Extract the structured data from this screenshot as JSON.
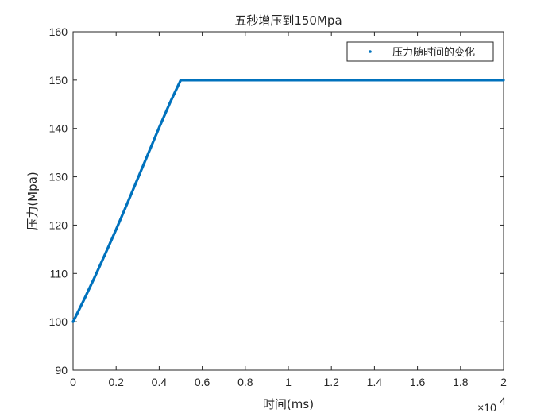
{
  "chart_data": {
    "type": "scatter",
    "title": "五秒增压到150Mpa",
    "xlabel": "时间(ms)",
    "ylabel": "压力(Mpa)",
    "xlim": [
      0,
      20000
    ],
    "ylim": [
      90,
      160
    ],
    "x_ticks": [
      0,
      2000,
      4000,
      6000,
      8000,
      10000,
      12000,
      14000,
      16000,
      18000,
      20000
    ],
    "x_tick_labels": [
      "0",
      "0.2",
      "0.4",
      "0.6",
      "0.8",
      "1",
      "1.2",
      "1.4",
      "1.6",
      "1.8",
      "2"
    ],
    "x_exponent_label": "×10",
    "x_exponent_power": "4",
    "y_ticks": [
      90,
      100,
      110,
      120,
      130,
      140,
      150,
      160
    ],
    "y_tick_labels": [
      "90",
      "100",
      "110",
      "120",
      "130",
      "140",
      "150",
      "160"
    ],
    "grid": false,
    "legend_position": "top-right",
    "colors": {
      "series": "#0072BD",
      "axis": "#262626"
    },
    "series": [
      {
        "name": "压力随时间的变化",
        "x": [
          0,
          500,
          1000,
          1500,
          2000,
          2500,
          3000,
          3500,
          4000,
          4500,
          5000,
          5500,
          6000,
          8000,
          10000,
          12000,
          14000,
          16000,
          18000,
          20000
        ],
        "y": [
          100,
          104.5,
          109.2,
          114.1,
          119.1,
          124.3,
          129.6,
          134.9,
          140.2,
          145.3,
          150,
          150,
          150,
          150,
          150,
          150,
          150,
          150,
          150,
          150
        ]
      }
    ]
  }
}
